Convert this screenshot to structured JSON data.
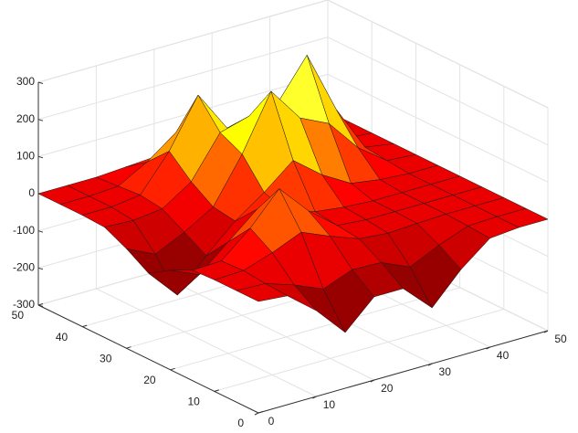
{
  "chart_data": {
    "type": "surface",
    "x": [
      0,
      5,
      10,
      15,
      20,
      25,
      30,
      35,
      40,
      45,
      50
    ],
    "y": [
      0,
      5,
      10,
      15,
      20,
      25,
      30,
      35,
      40,
      45,
      50
    ],
    "z": [
      [
        0,
        -7,
        -69,
        -150,
        -76,
        -76,
        -150,
        -69,
        -7,
        0,
        0
      ],
      [
        0,
        -3,
        -29,
        -62,
        -32,
        -35,
        -69,
        -32,
        -3,
        0,
        0
      ],
      [
        0,
        3,
        29,
        62,
        29,
        0,
        -7,
        -3,
        0,
        0,
        0
      ],
      [
        -3,
        0,
        66,
        150,
        69,
        7,
        0,
        0,
        0,
        0,
        0
      ],
      [
        -32,
        -66,
        0,
        66,
        37,
        15,
        5,
        0,
        0,
        0,
        0
      ],
      [
        -69,
        -150,
        -66,
        5,
        60,
        124,
        63,
        18,
        6,
        0,
        0
      ],
      [
        -32,
        -69,
        -32,
        14,
        134,
        281,
        187,
        150,
        63,
        6,
        0
      ],
      [
        -3,
        -7,
        2,
        53,
        163,
        185,
        200,
        305,
        138,
        13,
        0
      ],
      [
        0,
        0,
        10,
        106,
        235,
        124,
        78,
        138,
        63,
        6,
        0
      ],
      [
        0,
        0,
        5,
        48,
        106,
        48,
        11,
        13,
        6,
        0,
        0
      ],
      [
        0,
        0,
        0,
        5,
        10,
        5,
        0,
        0,
        0,
        0,
        0
      ]
    ],
    "colormap": "hot",
    "xlim": [
      0,
      50
    ],
    "ylim": [
      0,
      50
    ],
    "zlim": [
      -300,
      300
    ],
    "xticks": [
      0,
      10,
      20,
      30,
      40,
      50
    ],
    "yticks": [
      0,
      10,
      20,
      30,
      40,
      50
    ],
    "zticks": [
      -300,
      -200,
      -100,
      0,
      100,
      200,
      300
    ],
    "grid": true
  }
}
